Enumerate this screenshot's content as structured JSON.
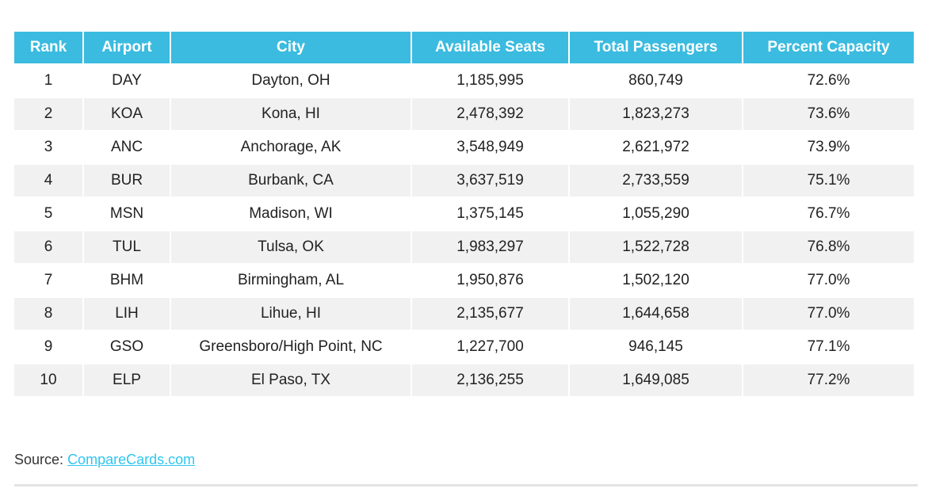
{
  "table": {
    "headers": [
      "Rank",
      "Airport",
      "City",
      "Available Seats",
      "Total Passengers",
      "Percent Capacity"
    ],
    "rows": [
      [
        "1",
        "DAY",
        "Dayton, OH",
        "1,185,995",
        "860,749",
        "72.6%"
      ],
      [
        "2",
        "KOA",
        "Kona, HI",
        "2,478,392",
        "1,823,273",
        "73.6%"
      ],
      [
        "3",
        "ANC",
        "Anchorage, AK",
        "3,548,949",
        "2,621,972",
        "73.9%"
      ],
      [
        "4",
        "BUR",
        "Burbank, CA",
        "3,637,519",
        "2,733,559",
        "75.1%"
      ],
      [
        "5",
        "MSN",
        "Madison, WI",
        "1,375,145",
        "1,055,290",
        "76.7%"
      ],
      [
        "6",
        "TUL",
        "Tulsa, OK",
        "1,983,297",
        "1,522,728",
        "76.8%"
      ],
      [
        "7",
        "BHM",
        "Birmingham, AL",
        "1,950,876",
        "1,502,120",
        "77.0%"
      ],
      [
        "8",
        "LIH",
        "Lihue, HI",
        "2,135,677",
        "1,644,658",
        "77.0%"
      ],
      [
        "9",
        "GSO",
        "Greensboro/High Point, NC",
        "1,227,700",
        "946,145",
        "77.1%"
      ],
      [
        "10",
        "ELP",
        "El Paso, TX",
        "2,136,255",
        "1,649,085",
        "77.2%"
      ]
    ],
    "header_color": "#3bbbdf"
  },
  "source": {
    "label": "Source:",
    "link_text": "CompareCards.com",
    "link_color": "#2fc6f0"
  }
}
